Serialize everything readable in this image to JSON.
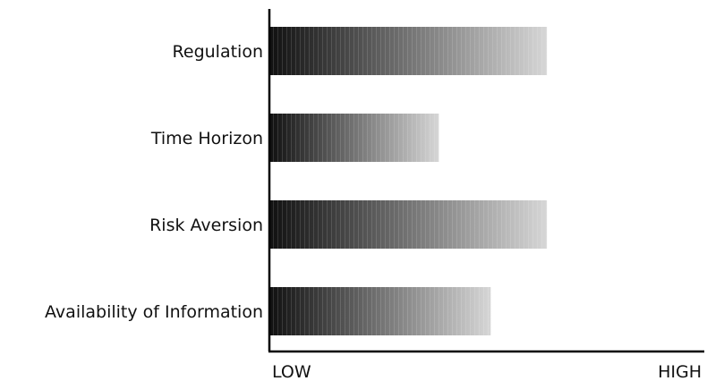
{
  "chart_data": {
    "type": "bar",
    "orientation": "horizontal",
    "title": "",
    "xlabel": "",
    "ylabel": "",
    "categories": [
      "Regulation",
      "Time Horizon",
      "Risk Aversion",
      "Availability of Information"
    ],
    "values": [
      0.64,
      0.39,
      0.64,
      0.51
    ],
    "xlim": [
      0,
      1
    ],
    "x_axis_end_labels": {
      "low": "LOW",
      "high": "HIGH"
    },
    "bar_fill": "gradient",
    "gradient_colors": {
      "start": "#111111",
      "end": "#d6d6d6"
    },
    "grid": false,
    "legend": "none"
  }
}
